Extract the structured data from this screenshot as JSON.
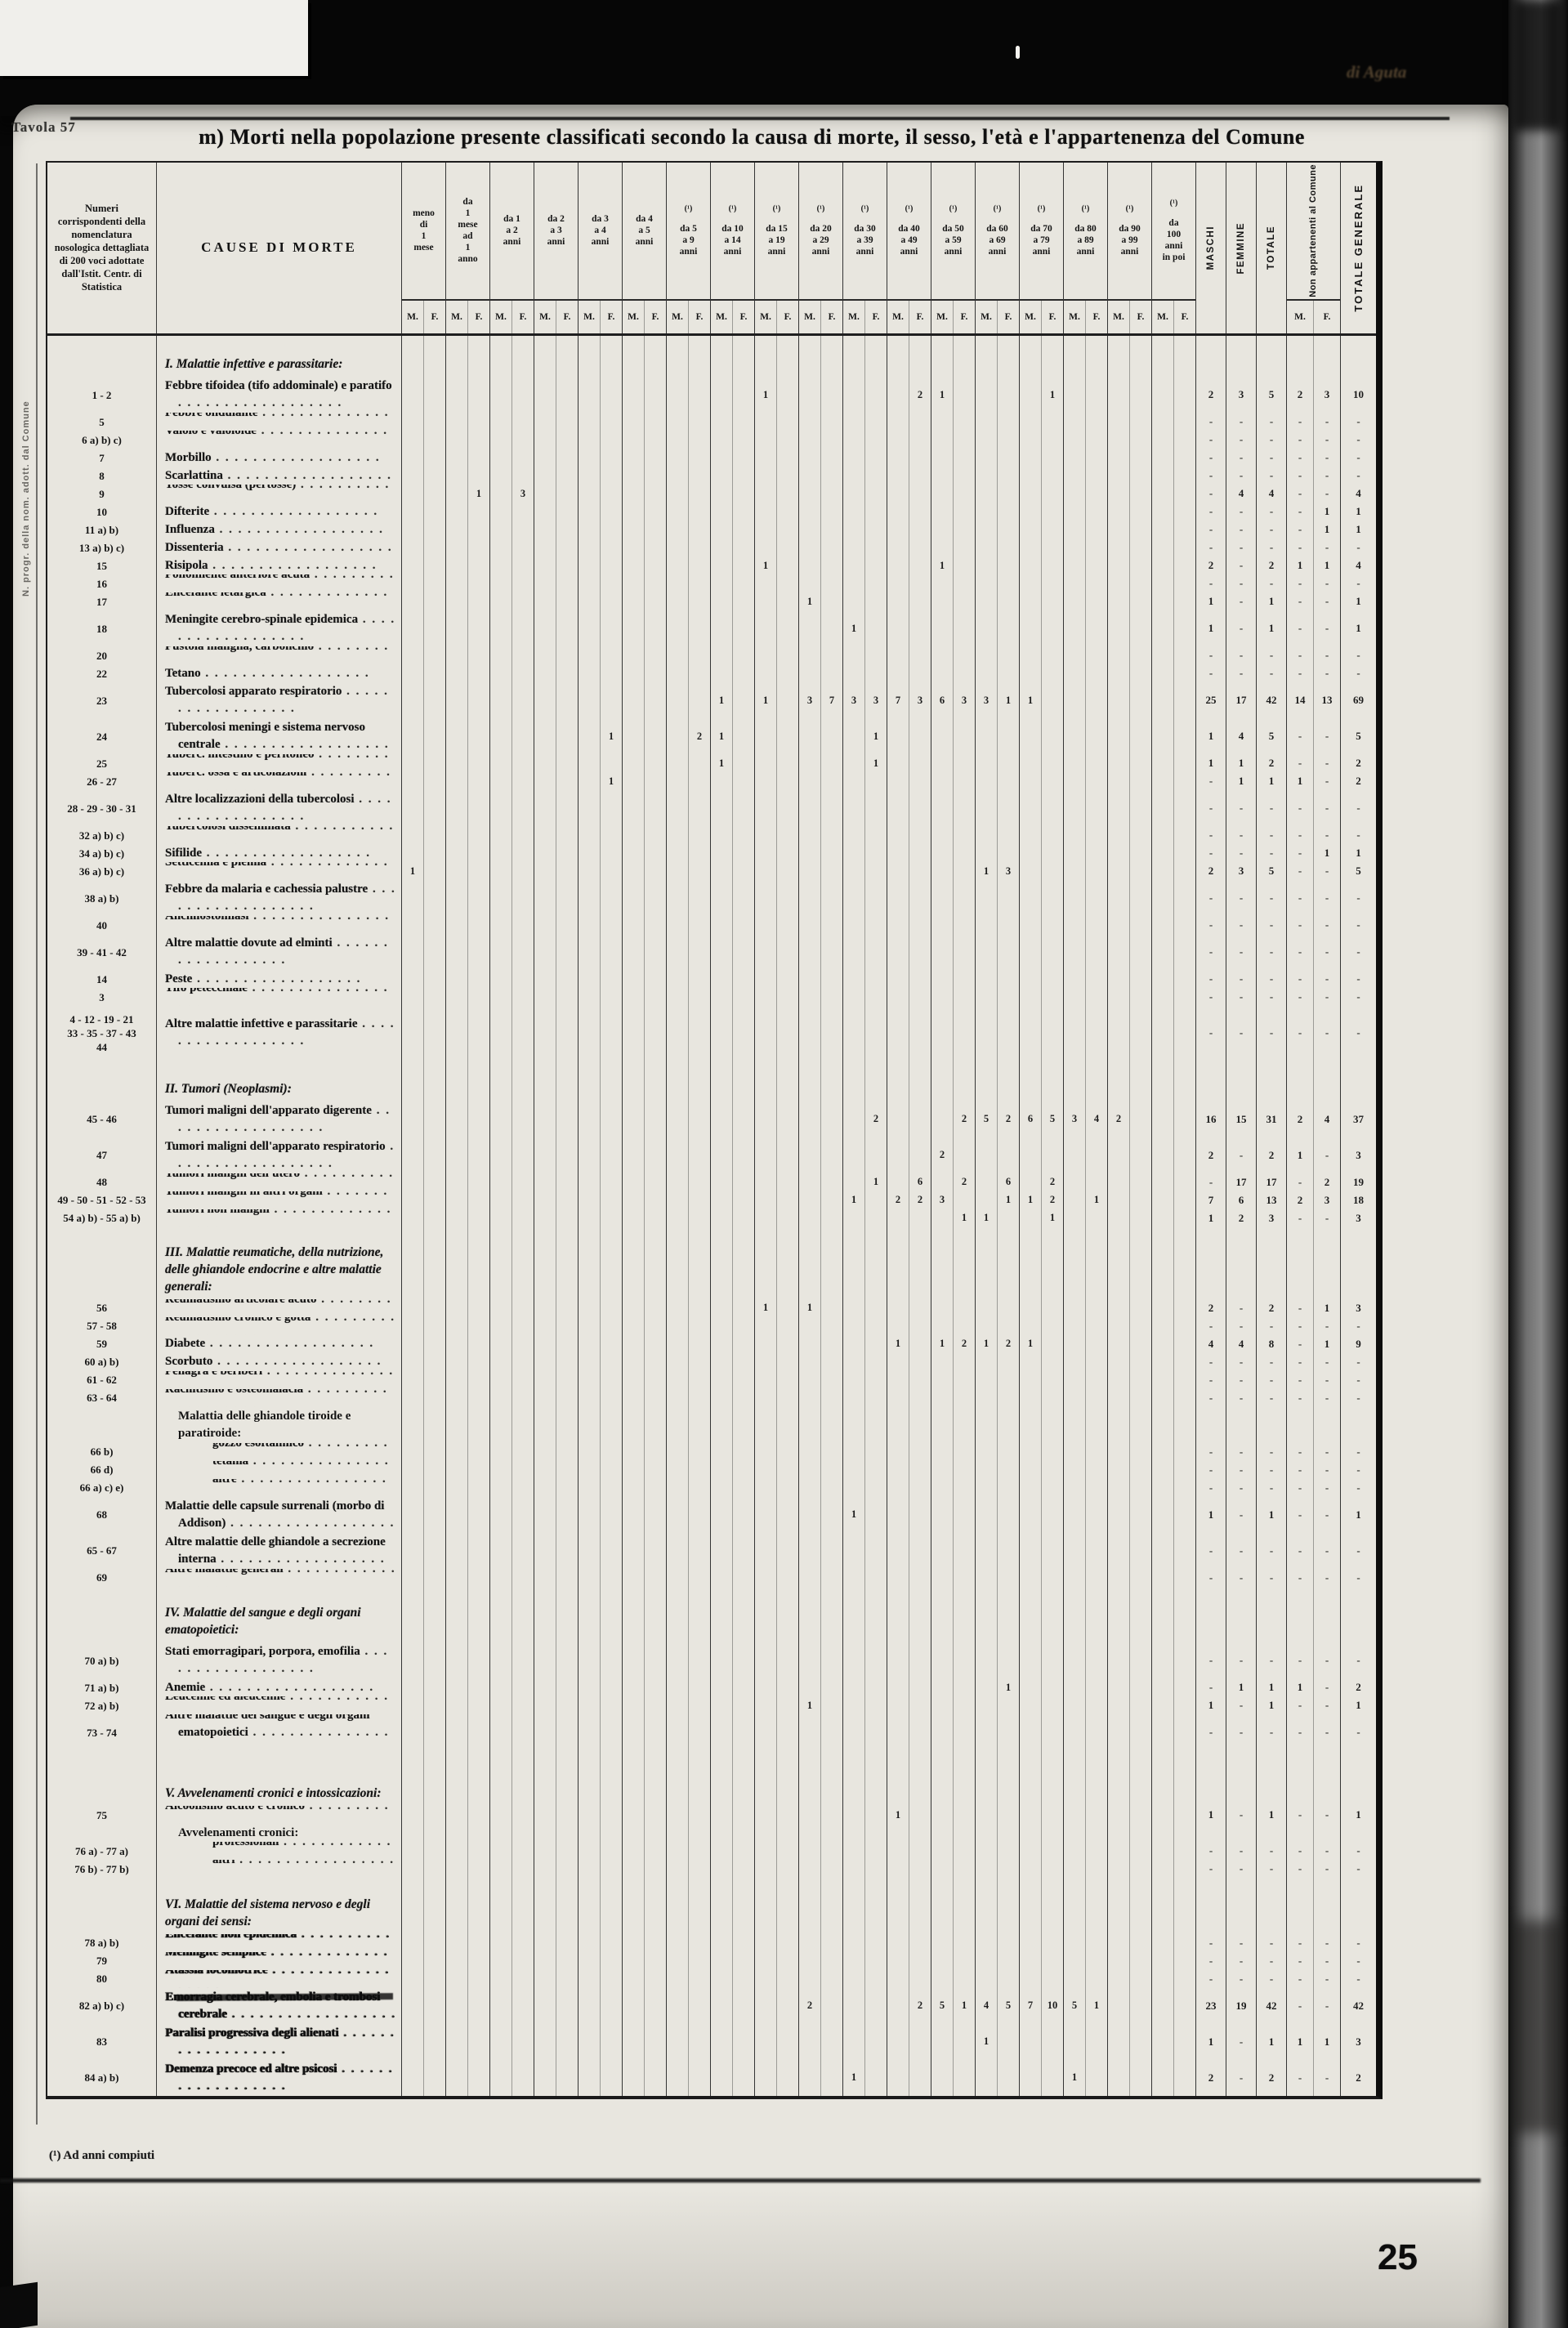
{
  "colors": {
    "paper": "#e8e6df",
    "ink": "#141414",
    "scan_bg": "#070707",
    "line": "#3a3a3a"
  },
  "header": {
    "tavola": "Tavola 57",
    "corner_note": "di Aguta",
    "title": "m) Morti nella popolazione presente classificati secondo la causa di morte, il sesso, l'età e l'appartenenza del Comune",
    "margin_note": "N. progr. della nom. adott. dal Comune",
    "col_num": "Numeri corrispondenti della nomenclatura nosologica dettagliata di 200 voci adottate dall'Istit. Centr. di Statistica",
    "col_cause": "CAUSE DI MORTE",
    "m": "M.",
    "f": "F.",
    "maschi": "MASCHI",
    "femmine": "FEMMINE",
    "totale": "TOTALE",
    "non_app": "Non appartenenti al Comune",
    "tot_gen": "TOTALE GENERALE",
    "ages": [
      {
        "lines": [
          "meno",
          "di",
          "1",
          "mese"
        ]
      },
      {
        "lines": [
          "da",
          "1",
          "mese",
          "ad",
          "1",
          "anno"
        ]
      },
      {
        "lines": [
          "da 1",
          "a 2",
          "anni"
        ]
      },
      {
        "lines": [
          "da 2",
          "a 3",
          "anni"
        ]
      },
      {
        "lines": [
          "da 3",
          "a 4",
          "anni"
        ]
      },
      {
        "lines": [
          "da 4",
          "a 5",
          "anni"
        ]
      },
      {
        "sup": "(¹)",
        "lines": [
          "da 5",
          "a 9",
          "anni"
        ]
      },
      {
        "sup": "(¹)",
        "lines": [
          "da 10",
          "a 14",
          "anni"
        ]
      },
      {
        "sup": "(¹)",
        "lines": [
          "da 15",
          "a 19",
          "anni"
        ]
      },
      {
        "sup": "(¹)",
        "lines": [
          "da 20",
          "a 29",
          "anni"
        ]
      },
      {
        "sup": "(¹)",
        "lines": [
          "da 30",
          "a 39",
          "anni"
        ]
      },
      {
        "sup": "(¹)",
        "lines": [
          "da 40",
          "a 49",
          "anni"
        ]
      },
      {
        "sup": "(¹)",
        "lines": [
          "da 50",
          "a 59",
          "anni"
        ]
      },
      {
        "sup": "(¹)",
        "lines": [
          "da 60",
          "a 69",
          "anni"
        ]
      },
      {
        "sup": "(¹)",
        "lines": [
          "da 70",
          "a 79",
          "anni"
        ]
      },
      {
        "sup": "(¹)",
        "lines": [
          "da 80",
          "a 89",
          "anni"
        ]
      },
      {
        "sup": "(¹)",
        "lines": [
          "da 90",
          "a 99",
          "anni"
        ]
      },
      {
        "sup": "(¹)",
        "lines": [
          "da",
          "100",
          "anni",
          "in poi"
        ]
      }
    ]
  },
  "rows": [
    {
      "s": "I. Malattie infettive e parassitarie:",
      "h": 2.3
    },
    {
      "n": "1 - 2",
      "l": "Febbre tifoidea (tifo addominale) e paratifo",
      "h": 2,
      "c": {
        "g8m": "1",
        "g11f": "2",
        "g12m": "1",
        "g14f": "1"
      },
      "t": [
        "2",
        "3",
        "5",
        "2",
        "3",
        "10"
      ]
    },
    {
      "n": "5",
      "l": "Febbre ondulante",
      "h": 1,
      "t": [
        "-",
        "-",
        "-",
        "-",
        "-",
        "-"
      ]
    },
    {
      "n": "6 a) b) c)",
      "l": "Vaiolo e vaioloide",
      "h": 1,
      "t": [
        "-",
        "-",
        "-",
        "-",
        "-",
        "-"
      ]
    },
    {
      "n": "7",
      "l": "Morbillo",
      "h": 1,
      "t": [
        "-",
        "-",
        "-",
        "-",
        "-",
        "-"
      ]
    },
    {
      "n": "8",
      "l": "Scarlattina",
      "h": 1,
      "t": [
        "-",
        "-",
        "-",
        "-",
        "-",
        "-"
      ]
    },
    {
      "n": "9",
      "l": "Tosse convulsa (pertosse)",
      "h": 1,
      "c": {
        "g1f": "1",
        "g2f": "3"
      },
      "t": [
        "-",
        "4",
        "4",
        "-",
        "-",
        "4"
      ]
    },
    {
      "n": "10",
      "l": "Difterite",
      "h": 1,
      "t": [
        "-",
        "-",
        "-",
        "-",
        "1",
        "1"
      ]
    },
    {
      "n": "11 a) b)",
      "l": "Influenza",
      "h": 1,
      "t": [
        "-",
        "-",
        "-",
        "-",
        "1",
        "1"
      ]
    },
    {
      "n": "13 a) b) c)",
      "l": "Dissenteria",
      "h": 1,
      "t": [
        "-",
        "-",
        "-",
        "-",
        "-",
        "-"
      ]
    },
    {
      "n": "15",
      "l": "Risipola",
      "h": 1,
      "c": {
        "g8m": "1",
        "g12m": "1"
      },
      "t": [
        "2",
        "-",
        "2",
        "1",
        "1",
        "4"
      ]
    },
    {
      "n": "16",
      "l": "Poliomielite anteriore acuta",
      "h": 1,
      "t": [
        "-",
        "-",
        "-",
        "-",
        "-",
        "-"
      ]
    },
    {
      "n": "17",
      "l": "Encefalite letargica",
      "h": 1,
      "c": {
        "g9m": "1"
      },
      "t": [
        "1",
        "-",
        "1",
        "-",
        "-",
        "1"
      ]
    },
    {
      "n": "18",
      "l": "Meningite cerebro-spinale epidemica",
      "h": 2,
      "c": {
        "g10m": "1"
      },
      "t": [
        "1",
        "-",
        "1",
        "-",
        "-",
        "1"
      ]
    },
    {
      "n": "20",
      "l": "Pustola maligna, carbonchio",
      "h": 1,
      "t": [
        "-",
        "-",
        "-",
        "-",
        "-",
        "-"
      ]
    },
    {
      "n": "22",
      "l": "Tetano",
      "h": 1,
      "t": [
        "-",
        "-",
        "-",
        "-",
        "-",
        "-"
      ]
    },
    {
      "n": "23",
      "l": "Tubercolosi apparato respiratorio",
      "h": 2,
      "c": {
        "g7m": "1",
        "g8m": "1",
        "g9m": "3",
        "g9f": "7",
        "g10m": "3",
        "g10f": "3",
        "g11m": "7",
        "g11f": "3",
        "g12m": "6",
        "g12f": "3",
        "g13m": "3",
        "g13f": "1",
        "g14m": "1"
      },
      "t": [
        "25",
        "17",
        "42",
        "14",
        "13",
        "69"
      ]
    },
    {
      "n": "24",
      "l": "Tubercolosi meningi e sistema nervoso centrale",
      "h": 2,
      "c": {
        "g4f": "1",
        "g6f": "2",
        "g7m": "1",
        "g10f": "1"
      },
      "t": [
        "1",
        "4",
        "5",
        "-",
        "-",
        "5"
      ]
    },
    {
      "n": "25",
      "l": "Tuberc. intestino e peritoneo",
      "h": 1,
      "c": {
        "g7m": "1",
        "g10f": "1"
      },
      "t": [
        "1",
        "1",
        "2",
        "-",
        "-",
        "2"
      ]
    },
    {
      "n": "26 - 27",
      "l": "Tuberc. ossa e articolazioni",
      "h": 1,
      "c": {
        "g4f": "1"
      },
      "t": [
        "-",
        "1",
        "1",
        "1",
        "-",
        "2"
      ]
    },
    {
      "n": "28 - 29 - 30 - 31",
      "l": "Altre localizzazioni della tubercolosi",
      "h": 2,
      "t": [
        "-",
        "-",
        "-",
        "-",
        "-",
        "-"
      ]
    },
    {
      "n": "32 a) b) c)",
      "l": "Tubercolosi disseminata",
      "h": 1,
      "t": [
        "-",
        "-",
        "-",
        "-",
        "-",
        "-"
      ]
    },
    {
      "n": "34 a) b) c)",
      "l": "Sifilide",
      "h": 1,
      "t": [
        "-",
        "-",
        "-",
        "-",
        "1",
        "1"
      ]
    },
    {
      "n": "36 a) b) c)",
      "l": "Setticemia e piemia",
      "h": 1,
      "c": {
        "g0m": "1",
        "g13m": "1",
        "g13f": "3"
      },
      "t": [
        "2",
        "3",
        "5",
        "-",
        "-",
        "5"
      ]
    },
    {
      "n": "38 a) b)",
      "l": "Febbre da malaria e cachessia palustre",
      "h": 2,
      "t": [
        "-",
        "-",
        "-",
        "-",
        "-",
        "-"
      ]
    },
    {
      "n": "40",
      "l": "Anchilostomiasi",
      "h": 1,
      "t": [
        "-",
        "-",
        "-",
        "-",
        "-",
        "-"
      ]
    },
    {
      "n": "39 - 41 - 42",
      "l": "Altre malattie dovute ad elminti",
      "h": 2,
      "t": [
        "-",
        "-",
        "-",
        "-",
        "-",
        "-"
      ]
    },
    {
      "n": "14",
      "l": "Peste",
      "h": 1,
      "t": [
        "-",
        "-",
        "-",
        "-",
        "-",
        "-"
      ]
    },
    {
      "n": "3",
      "l": "Tifo petecchiale",
      "h": 1,
      "t": [
        "-",
        "-",
        "-",
        "-",
        "-",
        "-"
      ]
    },
    {
      "n": "4 - 12 - 19 - 21\n33 - 35 - 37 - 43\n44",
      "l": "Altre malattie infettive e parassitarie",
      "h": 3,
      "t": [
        "-",
        "-",
        "-",
        "-",
        "-",
        "-"
      ]
    },
    {
      "s": "II. Tumori (Neoplasmi):",
      "h": 2.3
    },
    {
      "n": "45 - 46",
      "l": "Tumori maligni dell'apparato digerente",
      "h": 2,
      "c": {
        "g10f": "2",
        "g12f": "2",
        "g13m": "5",
        "g13f": "2",
        "g14m": "6",
        "g14f": "5",
        "g15m": "3",
        "g15f": "4",
        "g16m": "2"
      },
      "t": [
        "16",
        "15",
        "31",
        "2",
        "4",
        "37"
      ]
    },
    {
      "n": "47",
      "l": "Tumori maligni dell'apparato respiratorio",
      "h": 2,
      "c": {
        "g12m": "2"
      },
      "t": [
        "2",
        "-",
        "2",
        "1",
        "-",
        "3"
      ]
    },
    {
      "n": "48",
      "l": "Tumori maligni dell'utero",
      "h": 1,
      "c": {
        "g10f": "1",
        "g11f": "6",
        "g12f": "2",
        "g13f": "6",
        "g14f": "2"
      },
      "t": [
        "-",
        "17",
        "17",
        "-",
        "2",
        "19"
      ]
    },
    {
      "n": "49 - 50 - 51 - 52 - 53",
      "l": "Tumori maligni in altri organi",
      "h": 1,
      "c": {
        "g10m": "1",
        "g11m": "2",
        "g11f": "2",
        "g12m": "3",
        "g13f": "1",
        "g14m": "1",
        "g14f": "2",
        "g15f": "1"
      },
      "t": [
        "7",
        "6",
        "13",
        "2",
        "3",
        "18"
      ]
    },
    {
      "n": "54 a) b) - 55 a) b)",
      "l": "Tumori non maligni",
      "h": 1,
      "c": {
        "g12f": "1",
        "g13m": "1",
        "g14f": "1"
      },
      "t": [
        "1",
        "2",
        "3",
        "-",
        "-",
        "3"
      ]
    },
    {
      "s": "III. Malattie reumatiche, della nutrizione, delle ghiandole endocrine e altre malattie generali:",
      "h": 4
    },
    {
      "n": "56",
      "l": "Reumatismo articolare acuto",
      "h": 1,
      "c": {
        "g8m": "1",
        "g9m": "1"
      },
      "t": [
        "2",
        "-",
        "2",
        "-",
        "1",
        "3"
      ]
    },
    {
      "n": "57 - 58",
      "l": "Reumatismo cronico e gotta",
      "h": 1,
      "t": [
        "-",
        "-",
        "-",
        "-",
        "-",
        "-"
      ]
    },
    {
      "n": "59",
      "l": "Diabete",
      "h": 1,
      "c": {
        "g11m": "1",
        "g12m": "1",
        "g12f": "2",
        "g13m": "1",
        "g13f": "2",
        "g14m": "1"
      },
      "t": [
        "4",
        "4",
        "8",
        "-",
        "1",
        "9"
      ]
    },
    {
      "n": "60 a) b)",
      "l": "Scorbuto",
      "h": 1,
      "t": [
        "-",
        "-",
        "-",
        "-",
        "-",
        "-"
      ]
    },
    {
      "n": "61 - 62",
      "l": "Pellagra e beriberi",
      "h": 1,
      "t": [
        "-",
        "-",
        "-",
        "-",
        "-",
        "-"
      ]
    },
    {
      "n": "63 - 64",
      "l": "Rachitismo e osteomalacia",
      "h": 1,
      "t": [
        "-",
        "-",
        "-",
        "-",
        "-",
        "-"
      ]
    },
    {
      "sub": "Malattia delle ghiandole tiroide e paratiroide:",
      "h": 2
    },
    {
      "n": "66 b)",
      "l": "gozzo esoftalmico",
      "h": 1,
      "i": 1,
      "t": [
        "-",
        "-",
        "-",
        "-",
        "-",
        "-"
      ]
    },
    {
      "n": "66 d)",
      "l": "tetania",
      "h": 1,
      "i": 1,
      "t": [
        "-",
        "-",
        "-",
        "-",
        "-",
        "-"
      ]
    },
    {
      "n": "66 a) c) e)",
      "l": "altre",
      "h": 1,
      "i": 1,
      "t": [
        "-",
        "-",
        "-",
        "-",
        "-",
        "-"
      ]
    },
    {
      "n": "68",
      "l": "Malattie delle capsule surrenali (morbo di Addison)",
      "h": 2,
      "c": {
        "g10m": "1"
      },
      "t": [
        "1",
        "-",
        "1",
        "-",
        "-",
        "1"
      ]
    },
    {
      "n": "65 - 67",
      "l": "Altre malattie delle ghiandole a secrezione interna",
      "h": 2,
      "t": [
        "-",
        "-",
        "-",
        "-",
        "-",
        "-"
      ]
    },
    {
      "n": "69",
      "l": "Altre malattie generali",
      "h": 1,
      "t": [
        "-",
        "-",
        "-",
        "-",
        "-",
        "-"
      ]
    },
    {
      "s": "IV. Malattie del sangue e degli organi ematopoietici:",
      "h": 3.1
    },
    {
      "n": "70 a) b)",
      "l": "Stati emorragipari, porpora, emofilia",
      "h": 2,
      "t": [
        "-",
        "-",
        "-",
        "-",
        "-",
        "-"
      ]
    },
    {
      "n": "71 a) b)",
      "l": "Anemie",
      "h": 1,
      "c": {
        "g13f": "1"
      },
      "t": [
        "-",
        "1",
        "1",
        "1",
        "-",
        "2"
      ]
    },
    {
      "n": "72 a) b)",
      "l": "Leucemie ed aleucemie",
      "h": 1,
      "c": {
        "g9m": "1"
      },
      "t": [
        "1",
        "-",
        "1",
        "-",
        "-",
        "1"
      ]
    },
    {
      "n": "73 - 74",
      "l": "Altre malattie del sangue e degli organi ematopoietici",
      "h": 2,
      "t": [
        "-",
        "-",
        "-",
        "-",
        "-",
        "-"
      ]
    },
    {
      "s": "V. Avvelenamenti cronici e intossicazioni:",
      "h": 3.1
    },
    {
      "n": "75",
      "l": "Alcoolismo acuto e cronico",
      "h": 1,
      "c": {
        "g11m": "1"
      },
      "t": [
        "1",
        "-",
        "1",
        "-",
        "-",
        "1"
      ]
    },
    {
      "sub": "Avvelenamenti cronici:",
      "h": 1
    },
    {
      "n": "76 a) - 77 a)",
      "l": "professionali",
      "h": 1,
      "i": 1,
      "t": [
        "-",
        "-",
        "-",
        "-",
        "-",
        "-"
      ]
    },
    {
      "n": "76 b) - 77 b)",
      "l": "altri",
      "h": 1,
      "i": 1,
      "t": [
        "-",
        "-",
        "-",
        "-",
        "-",
        "-"
      ]
    },
    {
      "s": "VI. Malattie del sistema nervoso e degli organi dei sensi:",
      "h": 3.1
    },
    {
      "n": "78 a) b)",
      "l": "Encefalite non epidemica",
      "h": 1,
      "b": 1,
      "t": [
        "-",
        "-",
        "-",
        "-",
        "-",
        "-"
      ]
    },
    {
      "n": "79",
      "l": "Meningite semplice",
      "h": 1,
      "b": 1,
      "t": [
        "-",
        "-",
        "-",
        "-",
        "-",
        "-"
      ]
    },
    {
      "n": "80",
      "l": "Atassia locomotrice",
      "h": 1,
      "b": 1,
      "t": [
        "-",
        "-",
        "-",
        "-",
        "-",
        "-"
      ]
    },
    {
      "n": "82 a) b) c)",
      "l": "Emorragia cerebrale, embolia e trombosi cerebrale",
      "h": 2,
      "b": 1,
      "x": 1,
      "c": {
        "g9m": "2",
        "g11f": "2",
        "g12m": "5",
        "g12f": "1",
        "g13m": "4",
        "g13f": "5",
        "g14m": "7",
        "g14f": "10",
        "g15m": "5",
        "g15f": "1"
      },
      "t": [
        "23",
        "19",
        "42",
        "-",
        "-",
        "42"
      ]
    },
    {
      "n": "83",
      "l": "Paralisi progressiva degli alienati",
      "h": 2,
      "b": 1,
      "c": {
        "g13m": "1"
      },
      "t": [
        "1",
        "-",
        "1",
        "1",
        "1",
        "3"
      ]
    },
    {
      "n": "84 a) b)",
      "l": "Demenza precoce ed altre psicosi",
      "h": 2,
      "b": 1,
      "c": {
        "g10m": "1",
        "g15m": "1"
      },
      "t": [
        "2",
        "-",
        "2",
        "-",
        "-",
        "2"
      ]
    }
  ],
  "footer": {
    "footnote": "(¹) Ad anni compiuti",
    "page": "25"
  }
}
